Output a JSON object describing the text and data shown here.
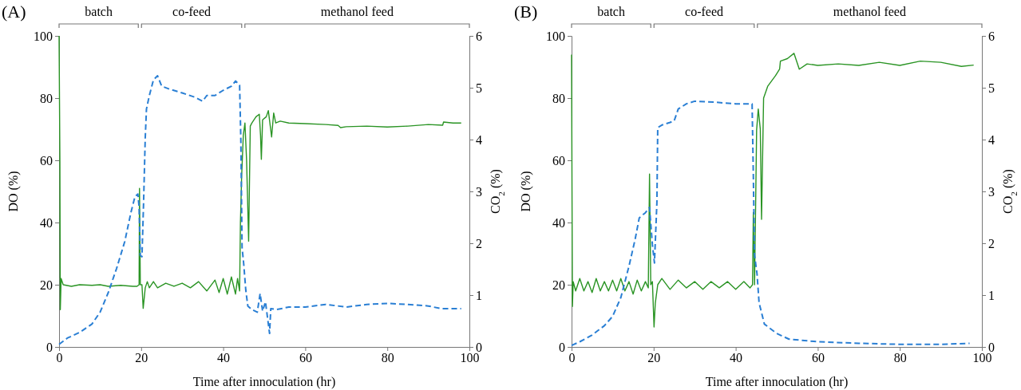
{
  "chart_data": [
    {
      "type": "line",
      "title": "(A)",
      "xlabel": "Time after innoculation (hr)",
      "ylabel": "DO (%)",
      "y2label": "CO$_{2}$ (%)",
      "xlim": [
        0,
        100
      ],
      "xticks": [
        0,
        20,
        40,
        60,
        80,
        100
      ],
      "ylim": [
        0,
        100
      ],
      "yticks": [
        0,
        20,
        40,
        60,
        80,
        100
      ],
      "y2lim": [
        0,
        6
      ],
      "y2ticks": [
        0,
        1,
        2,
        3,
        4,
        5,
        6
      ],
      "annotations": [
        "batch",
        "co-feed",
        "methanol feed"
      ],
      "series": [
        {
          "color": "#2a9424",
          "line_style": "solid",
          "x": [
            0,
            0.2,
            0.3,
            0.5,
            1,
            3,
            5,
            8,
            10,
            12,
            15,
            18,
            19,
            19.5,
            19.6,
            19.8,
            20.2,
            20.5,
            21,
            21.5,
            22,
            23,
            24,
            26,
            28,
            30,
            32,
            34,
            36,
            38,
            39,
            40,
            41,
            42,
            43,
            43.5,
            44,
            44.2,
            44.5,
            44.9,
            45.3,
            45.7,
            46.2,
            46.6,
            47,
            48,
            48.8,
            49.1,
            49.3,
            49.6,
            50.5,
            51,
            51.8,
            52.3,
            52.8,
            53.9,
            56,
            60,
            65,
            68,
            68.6,
            70,
            75,
            80,
            85,
            90,
            93.5,
            93.7,
            96,
            98
          ],
          "values": [
            100,
            60,
            12,
            22,
            20,
            19.5,
            20,
            19.8,
            20,
            19.5,
            19.8,
            19.5,
            19.5,
            20,
            51,
            20,
            20,
            12.4,
            19,
            21,
            19,
            21,
            19,
            20.5,
            19.5,
            20.5,
            19,
            21,
            18,
            21.5,
            17.5,
            22,
            17,
            22.5,
            17,
            22,
            18,
            40,
            55,
            68,
            72,
            60,
            34,
            71,
            72,
            74,
            74.8,
            68,
            60.3,
            73,
            74,
            76,
            67.5,
            75.2,
            72,
            72.6,
            72,
            71.8,
            71.5,
            71.2,
            70.5,
            70.8,
            71,
            70.7,
            71,
            71.5,
            71.3,
            72.3,
            72,
            72
          ]
        },
        {
          "color": "#2a7fd4",
          "line_style": "dashed",
          "axis": "y2",
          "x": [
            0,
            2,
            5,
            8,
            10,
            12,
            14,
            16,
            17.5,
            18.5,
            19.2,
            19.5,
            19.8,
            20.2,
            20.6,
            21,
            21.3,
            22,
            23,
            24,
            25,
            27,
            30,
            33,
            35,
            36,
            38,
            40,
            42,
            43,
            44,
            44.3,
            44.6,
            45,
            45.5,
            46,
            47,
            48.3,
            49,
            49.6,
            50.3,
            51.3,
            51.6,
            53,
            56,
            60,
            65,
            70,
            75,
            80,
            85,
            90,
            93,
            98
          ],
          "values": [
            0.05,
            0.17,
            0.28,
            0.44,
            0.67,
            1.05,
            1.51,
            2.03,
            2.59,
            2.9,
            2.95,
            2.7,
            1.77,
            1.74,
            2.79,
            4.03,
            4.59,
            4.85,
            5.15,
            5.23,
            5.03,
            4.97,
            4.9,
            4.82,
            4.74,
            4.85,
            4.85,
            4.95,
            5.03,
            5.13,
            5.05,
            4,
            1.92,
            1.6,
            1.1,
            0.79,
            0.72,
            0.67,
            1.03,
            0.69,
            0.87,
            0.26,
            0.74,
            0.72,
            0.77,
            0.77,
            0.82,
            0.77,
            0.82,
            0.84,
            0.82,
            0.79,
            0.74,
            0.74
          ]
        }
      ]
    },
    {
      "type": "line",
      "title": "(B)",
      "xlabel": "Time after innoculation (hr)",
      "ylabel": "DO (%)",
      "y2label": "CO$_{2}$ (%)",
      "xlim": [
        0,
        100
      ],
      "xticks": [
        0,
        20,
        40,
        60,
        80,
        100
      ],
      "ylim": [
        0,
        100
      ],
      "yticks": [
        0,
        20,
        40,
        60,
        80,
        100
      ],
      "y2lim": [
        0,
        6
      ],
      "y2ticks": [
        0,
        1,
        2,
        3,
        4,
        5,
        6
      ],
      "annotations": [
        "batch",
        "co-feed",
        "methanol feed"
      ],
      "series": [
        {
          "color": "#2a9424",
          "line_style": "solid",
          "x": [
            0,
            0.2,
            0.4,
            1,
            2,
            3,
            4,
            5,
            6,
            7,
            8,
            9,
            10,
            11,
            12,
            13,
            14,
            15,
            16,
            17,
            18,
            18.7,
            19,
            19.3,
            19.7,
            20.1,
            20.4,
            21,
            22,
            24,
            26,
            28,
            30,
            32,
            34,
            36,
            38,
            40,
            42,
            43.5,
            44.1,
            44.3,
            44.6,
            45.1,
            45.5,
            46,
            46.3,
            46.8,
            47.8,
            49.7,
            50.7,
            50.9,
            52.6,
            54.2,
            55.5,
            57.4,
            60,
            65,
            70,
            75,
            80,
            85,
            90,
            95,
            98
          ],
          "values": [
            94,
            13,
            21,
            18,
            22,
            18,
            21,
            17.5,
            22,
            18,
            21,
            18,
            21.5,
            18,
            22,
            18,
            21,
            17,
            21.5,
            18,
            21,
            19,
            55.6,
            20,
            21,
            6.4,
            14,
            20,
            22,
            18.5,
            21.5,
            19,
            21,
            18.5,
            21,
            19,
            21,
            18.5,
            21,
            19,
            20,
            43.2,
            20,
            69.7,
            76.5,
            70,
            41,
            80,
            83.8,
            87.2,
            89.3,
            91.9,
            92.7,
            94.4,
            89.3,
            91,
            90.5,
            91,
            90.5,
            91.5,
            90.5,
            91.9,
            91.5,
            90.2,
            90.6
          ]
        },
        {
          "color": "#2a7fd4",
          "line_style": "dashed",
          "axis": "y2",
          "x": [
            0,
            2,
            5,
            8,
            10,
            12,
            14,
            15.5,
            16.5,
            18,
            19,
            19.7,
            20.2,
            20.8,
            21,
            22,
            24,
            25,
            26,
            28,
            30,
            35,
            40,
            44,
            44.3,
            44.6,
            45.2,
            45.7,
            47,
            50,
            53,
            60,
            70,
            80,
            90,
            97
          ],
          "values": [
            0.03,
            0.1,
            0.23,
            0.41,
            0.59,
            0.95,
            1.56,
            2.08,
            2.49,
            2.59,
            2.69,
            1.97,
            1.62,
            2.79,
            4.23,
            4.28,
            4.33,
            4.36,
            4.59,
            4.69,
            4.74,
            4.72,
            4.69,
            4.69,
            3.31,
            1.77,
            1.41,
            0.85,
            0.44,
            0.26,
            0.15,
            0.1,
            0.07,
            0.05,
            0.05,
            0.07
          ]
        }
      ]
    }
  ]
}
